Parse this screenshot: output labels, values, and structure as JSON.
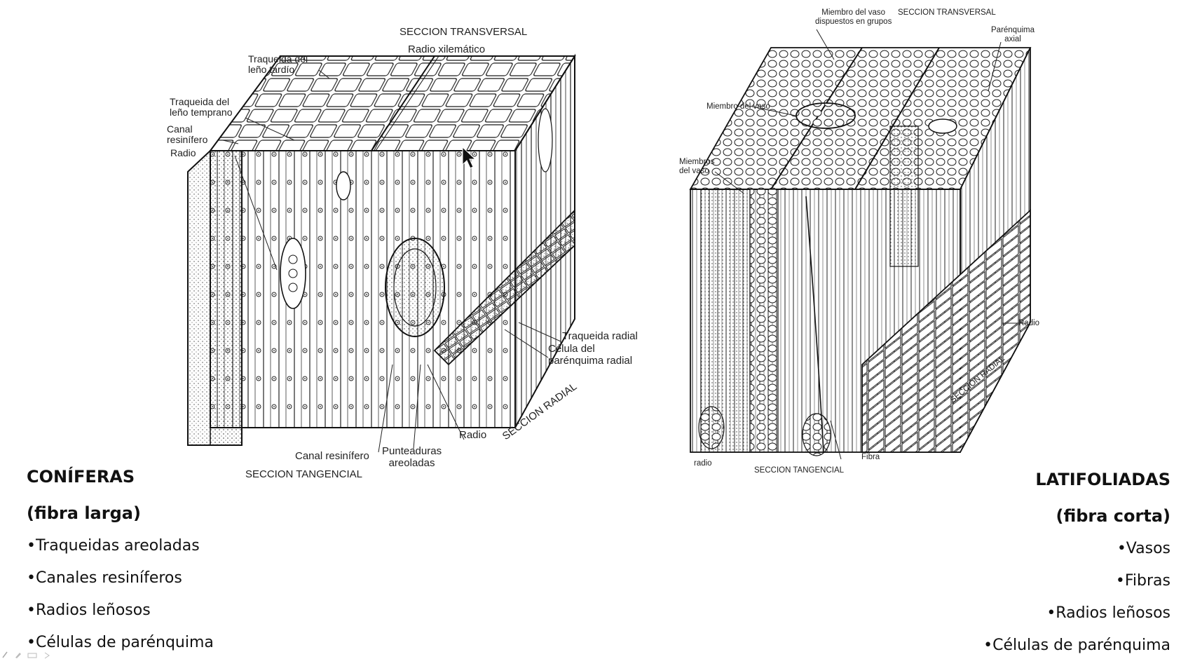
{
  "conifer_diagram": {
    "labels": {
      "transversal": "SECCION TRANSVERSAL",
      "radio_xilematico": "Radio xilemático",
      "traqueida_tardio": "Traqueida del\nleño tardío",
      "traqueida_temprano": "Traqueida del\nleño temprano",
      "canal_resinifero_top": "Canal\nresinífero",
      "radio_top": "Radio",
      "traqueida_radial": "Traqueida radial",
      "celula_parenquima": "Célula del\nparénquima radial",
      "seccion_radial": "SECCION RADIAL",
      "radio_bottom": "Radio",
      "canal_resinifero_bottom": "Canal resinífero",
      "punteaduras": "Punteaduras\nareoladas",
      "tangencial": "SECCION TANGENCIAL"
    }
  },
  "hardwood_diagram": {
    "labels": {
      "miembro_grupos": "Miembro del vaso\ndispuestos en grupos",
      "transversal": "SECCION TRANSVERSAL",
      "parenquima_axial": "Parénquima\naxial",
      "miembro_vaso": "Miembro del vaso",
      "miembros_vaso": "Miembros\ndel vaso",
      "radio_right": "Radio",
      "seccion_radial": "SECCION RADIAL",
      "radio_bottom": "radio",
      "tangencial": "SECCION TANGENCIAL",
      "fibra": "Fibra"
    }
  },
  "left_text": {
    "title": "CONÍFERAS",
    "subtitle": "(fibra larga)",
    "items": [
      "•Traqueidas areoladas",
      "•Canales resiníferos",
      "•Radios leñosos",
      "•Células de parénquima"
    ]
  },
  "right_text": {
    "title": "LATIFOLIADAS",
    "subtitle": "(fibra corta)",
    "items": [
      "•Vasos",
      "•Fibras",
      "•Radios leñosos",
      "•Células de parénquima"
    ]
  }
}
